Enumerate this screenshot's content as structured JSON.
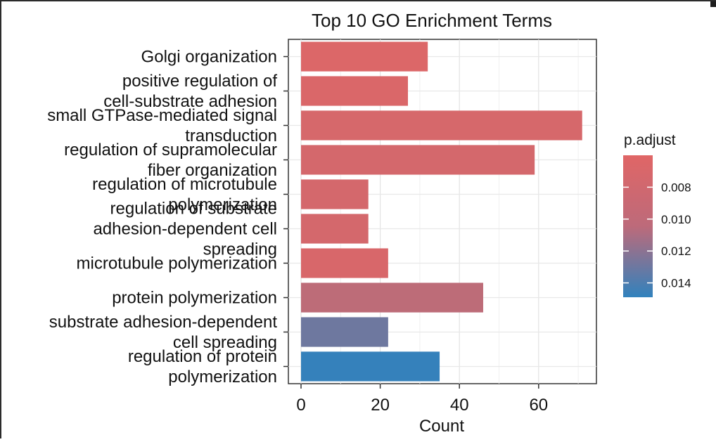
{
  "chart_data": {
    "type": "bar",
    "orientation": "horizontal",
    "title": "Top 10 GO Enrichment Terms",
    "xlabel": "Count",
    "ylabel": "",
    "xlim": [
      0,
      75
    ],
    "xticks": [
      0,
      20,
      40,
      60
    ],
    "grid": true,
    "legend_position": "right",
    "categories": [
      [
        "Golgi organization"
      ],
      [
        "positive regulation of",
        "cell-substrate adhesion"
      ],
      [
        "small GTPase-mediated signal",
        "transduction"
      ],
      [
        "regulation of supramolecular",
        "fiber organization"
      ],
      [
        "regulation of microtubule",
        "polymerization"
      ],
      [
        "regulation of substrate",
        "adhesion-dependent cell",
        "spreading"
      ],
      [
        "microtubule polymerization"
      ],
      [
        "protein polymerization"
      ],
      [
        "substrate adhesion-dependent",
        "cell spreading"
      ],
      [
        "regulation of protein",
        "polymerization"
      ]
    ],
    "values": [
      32,
      27,
      71,
      59,
      17,
      17,
      22,
      46,
      22,
      35
    ],
    "p_adjust": [
      0.0062,
      0.0063,
      0.0065,
      0.0066,
      0.0066,
      0.0066,
      0.0064,
      0.0078,
      0.0118,
      0.0147
    ],
    "legend": {
      "title": "p.adjust",
      "ticks": [
        0.008,
        0.01,
        0.012,
        0.014
      ],
      "tick_labels": [
        "0.008",
        "0.010",
        "0.012",
        "0.014"
      ],
      "range": [
        0.006,
        0.0149
      ],
      "color_low": "#e06666",
      "color_high": "#3182bd"
    }
  }
}
